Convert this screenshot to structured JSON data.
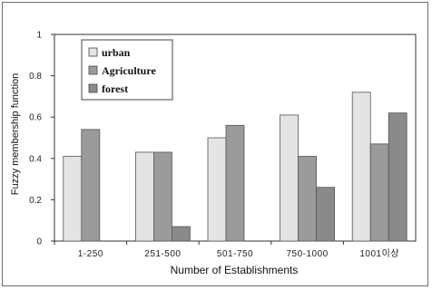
{
  "chart_data": {
    "type": "bar",
    "title": "",
    "xlabel": "Number of Establishments",
    "ylabel": "Fuzzy membership function",
    "ylim": [
      0,
      1
    ],
    "yticks": [
      "0",
      "0.2",
      "0.4",
      "0.6",
      "0.8",
      "1"
    ],
    "grid": false,
    "legend_position": "top-left",
    "categories": [
      "1-250",
      "251-500",
      "501-750",
      "750-1000",
      "1001이상"
    ],
    "series": [
      {
        "name": "urban",
        "color": "#e4e4e4",
        "values": [
          0.41,
          0.43,
          0.5,
          0.61,
          0.72
        ]
      },
      {
        "name": "Agriculture",
        "color": "#9b9b9b",
        "values": [
          0.54,
          0.43,
          0.56,
          0.41,
          0.47
        ]
      },
      {
        "name": "forest",
        "color": "#8a8a8a",
        "values": [
          null,
          0.07,
          null,
          0.26,
          0.62
        ]
      }
    ]
  }
}
